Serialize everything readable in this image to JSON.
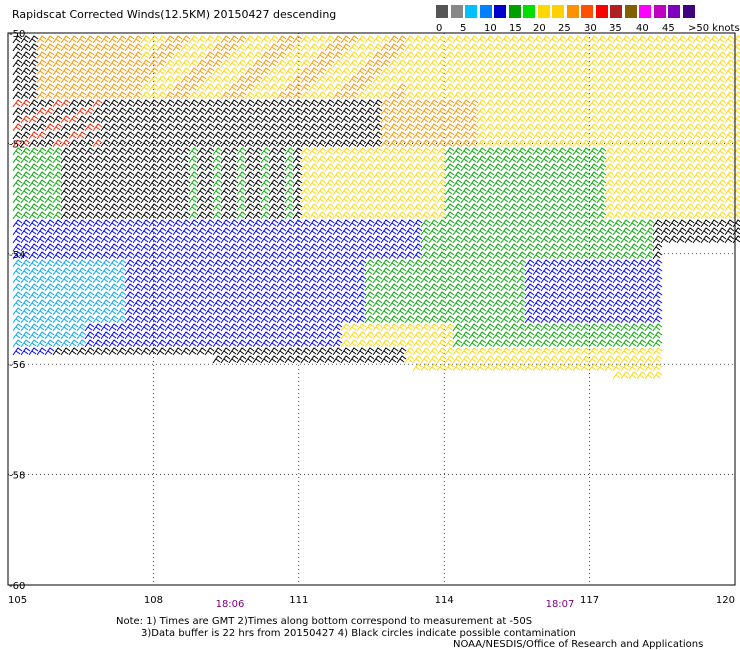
{
  "title": "Rapidscat Corrected Winds(12.5KM) 20150427 descending",
  "legend": {
    "colors": [
      "#555555",
      "#888888",
      "#00c0ff",
      "#0080ff",
      "#0000cc",
      "#00a000",
      "#00e000",
      "#ffd800",
      "#ffd000",
      "#ff9000",
      "#ff5000",
      "#ff0000",
      "#b02020",
      "#806000",
      "#ff00ff",
      "#c000c0",
      "#8000c0",
      "#400080"
    ],
    "labels": [
      "0",
      "5",
      "10",
      "15",
      "20",
      "25",
      "30",
      "35",
      "40",
      "45",
      ">50 knots"
    ]
  },
  "axes": {
    "x_ticks": [
      "105",
      "108",
      "111",
      "114",
      "117",
      "120"
    ],
    "y_ticks": [
      "-50",
      "-52",
      "-54",
      "-56",
      "-58",
      "-60"
    ],
    "x_range": [
      105,
      120
    ],
    "y_range": [
      -60,
      -50
    ]
  },
  "time_labels": [
    "18:06",
    "18:07"
  ],
  "notes": {
    "line1": "Note: 1) Times are GMT 2)Times along bottom correspond to measurement at -50S",
    "line2": "3)Data buffer is 22 hrs from 20150427 4) Black circles indicate possible contamination",
    "credit": "NOAA/NESDIS/Office of Research and Applications"
  },
  "colors": {
    "calm": "#000000",
    "light_blue": "#00aaff",
    "blue": "#0000ff",
    "green": "#00b000",
    "yellow": "#ffd700",
    "orange": "#ff9900",
    "red": "#ff2000",
    "purple": "#800080"
  }
}
